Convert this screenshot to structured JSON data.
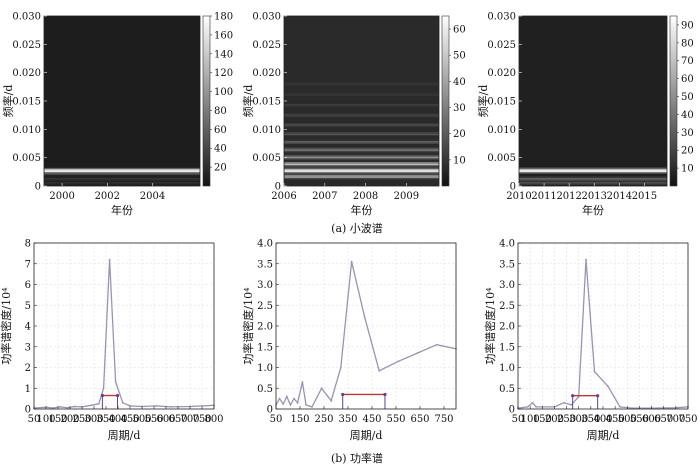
{
  "captions": {
    "a": "(a) 小波谱",
    "b": "(b) 功率谱"
  },
  "chart_data": [
    {
      "type": "heatmap",
      "panel": "wavelet-1",
      "xlabel": "年份",
      "ylabel": "频率/d",
      "xlim": [
        1999.2,
        2006.1
      ],
      "ylim": [
        0,
        0.03
      ],
      "x_ticks": [
        2000,
        2002,
        2004
      ],
      "y_ticks": [
        0,
        0.005,
        0.01,
        0.015,
        0.02,
        0.025,
        0.03
      ],
      "y_tick_labels": [
        "0",
        "0.005",
        "0.010",
        "0.015",
        "0.020",
        "0.025",
        "0.030"
      ],
      "colorbar": {
        "min": 0,
        "max": 180,
        "ticks": [
          20,
          40,
          60,
          80,
          100,
          120,
          140,
          160,
          180
        ]
      },
      "bands": [
        {
          "f": 0.00274,
          "w": 0.00035,
          "v": 180
        },
        {
          "f": 0.00215,
          "w": 0.00025,
          "v": 35
        },
        {
          "f": 0.0013,
          "w": 0.0003,
          "v": 22
        },
        {
          "f": 0.0006,
          "w": 0.0003,
          "v": 18
        }
      ],
      "base": 6
    },
    {
      "type": "heatmap",
      "panel": "wavelet-2",
      "xlabel": "年份",
      "ylabel": "频率/d",
      "xlim": [
        2006,
        2009.8
      ],
      "ylim": [
        0,
        0.03
      ],
      "x_ticks": [
        2006,
        2007,
        2008,
        2009
      ],
      "y_ticks": [
        0,
        0.005,
        0.01,
        0.015,
        0.02,
        0.025,
        0.03
      ],
      "y_tick_labels": [
        "0",
        "0.005",
        "0.010",
        "0.015",
        "0.020",
        "0.025",
        "0.030"
      ],
      "colorbar": {
        "min": 0,
        "max": 65,
        "ticks": [
          10,
          20,
          30,
          40,
          50,
          60
        ]
      },
      "bands": [
        {
          "f": 0.00274,
          "w": 0.00035,
          "v": 62
        },
        {
          "f": 0.0039,
          "w": 0.0003,
          "v": 45
        },
        {
          "f": 0.0017,
          "w": 0.0003,
          "v": 40
        },
        {
          "f": 0.0051,
          "w": 0.0003,
          "v": 32
        },
        {
          "f": 0.0064,
          "w": 0.0003,
          "v": 26
        },
        {
          "f": 0.0078,
          "w": 0.0003,
          "v": 20
        },
        {
          "f": 0.0092,
          "w": 0.0003,
          "v": 17
        },
        {
          "f": 0.0108,
          "w": 0.0003,
          "v": 14
        },
        {
          "f": 0.0125,
          "w": 0.0003,
          "v": 12
        },
        {
          "f": 0.0143,
          "w": 0.0003,
          "v": 10
        },
        {
          "f": 0.0162,
          "w": 0.0003,
          "v": 9
        },
        {
          "f": 0.018,
          "w": 0.0004,
          "v": 8
        }
      ],
      "base": 5
    },
    {
      "type": "heatmap",
      "panel": "wavelet-3",
      "xlabel": "年份",
      "ylabel": "频率/d",
      "xlim": [
        2010,
        2015.9
      ],
      "ylim": [
        0,
        0.03
      ],
      "x_ticks": [
        2010,
        2011,
        2012,
        2013,
        2014,
        2015
      ],
      "y_ticks": [
        0,
        0.005,
        0.01,
        0.015,
        0.02,
        0.025,
        0.03
      ],
      "y_tick_labels": [
        "0",
        "0.005",
        "0.010",
        "0.015",
        "0.020",
        "0.025",
        "0.030"
      ],
      "colorbar": {
        "min": 0,
        "max": 95,
        "ticks": [
          10,
          20,
          30,
          40,
          50,
          60,
          70,
          80,
          90
        ]
      },
      "bands": [
        {
          "f": 0.00274,
          "w": 0.00035,
          "v": 95
        },
        {
          "f": 0.0013,
          "w": 0.0003,
          "v": 30
        },
        {
          "f": 0.0006,
          "w": 0.0003,
          "v": 22
        }
      ],
      "base": 4
    },
    {
      "type": "line",
      "panel": "power-1",
      "xlabel": "周期/d",
      "ylabel": "功率谱密度/10⁴",
      "xlim": [
        50,
        800
      ],
      "ylim": [
        0,
        8
      ],
      "x_ticks": [
        50,
        100,
        150,
        200,
        250,
        300,
        350,
        400,
        450,
        500,
        550,
        600,
        650,
        700,
        750,
        800
      ],
      "y_ticks": [
        0,
        1,
        2,
        3,
        4,
        5,
        6,
        7,
        8
      ],
      "y_tick_labels": [
        "0",
        "1",
        "2",
        "3",
        "4",
        "5",
        "6",
        "7",
        "8"
      ],
      "x": [
        50,
        100,
        130,
        160,
        190,
        220,
        250,
        290,
        320,
        340,
        365,
        390,
        420,
        450,
        500,
        560,
        620,
        700,
        800
      ],
      "y": [
        0.05,
        0.08,
        0.05,
        0.1,
        0.06,
        0.12,
        0.1,
        0.18,
        0.25,
        1.0,
        7.2,
        1.3,
        0.3,
        0.15,
        0.12,
        0.15,
        0.1,
        0.12,
        0.18
      ],
      "marker_bar": {
        "x0": 335,
        "x1": 398,
        "y": 0.65
      }
    },
    {
      "type": "line",
      "panel": "power-2",
      "xlabel": "周期/d",
      "ylabel": "功率谱密度/10⁴",
      "xlim": [
        50,
        800
      ],
      "ylim": [
        0,
        4
      ],
      "x_ticks": [
        50,
        150,
        250,
        350,
        450,
        550,
        650,
        750
      ],
      "y_ticks": [
        0,
        0.5,
        1,
        1.5,
        2,
        2.5,
        3,
        3.5,
        4
      ],
      "y_tick_labels": [
        "0",
        "0.5",
        "1.0",
        "1.5",
        "2.0",
        "2.5",
        "3.0",
        "3.5",
        "4.0"
      ],
      "x": [
        50,
        65,
        80,
        95,
        110,
        125,
        140,
        160,
        175,
        200,
        240,
        280,
        320,
        365,
        420,
        480,
        560,
        640,
        720,
        800
      ],
      "y": [
        0.1,
        0.25,
        0.12,
        0.3,
        0.1,
        0.25,
        0.15,
        0.65,
        0.1,
        0.05,
        0.5,
        0.2,
        1.0,
        3.55,
        2.2,
        0.92,
        1.15,
        1.35,
        1.55,
        1.45
      ],
      "marker_bar": {
        "x0": 328,
        "x1": 504,
        "y": 0.35
      }
    },
    {
      "type": "line",
      "panel": "power-3",
      "xlabel": "周期/d",
      "ylabel": "功率谱密度/10⁴",
      "xlim": [
        50,
        750
      ],
      "ylim": [
        0,
        4
      ],
      "x_ticks": [
        50,
        100,
        150,
        200,
        250,
        300,
        350,
        400,
        450,
        500,
        550,
        600,
        650,
        700,
        750
      ],
      "y_ticks": [
        0,
        0.5,
        1,
        1.5,
        2,
        2.5,
        3,
        3.5,
        4
      ],
      "y_tick_labels": [
        "0",
        "0.5",
        "1.0",
        "1.5",
        "2.0",
        "2.5",
        "3.0",
        "3.5",
        "4.0"
      ],
      "x": [
        50,
        90,
        110,
        125,
        150,
        200,
        240,
        270,
        300,
        330,
        365,
        420,
        470,
        520,
        600,
        700,
        750
      ],
      "y": [
        0.02,
        0.05,
        0.15,
        0.05,
        0.05,
        0.05,
        0.15,
        0.1,
        0.3,
        3.6,
        0.9,
        0.55,
        0.05,
        0.02,
        0.02,
        0.03,
        0.05
      ],
      "marker_bar": {
        "x0": 275,
        "x1": 378,
        "y": 0.32
      }
    }
  ]
}
